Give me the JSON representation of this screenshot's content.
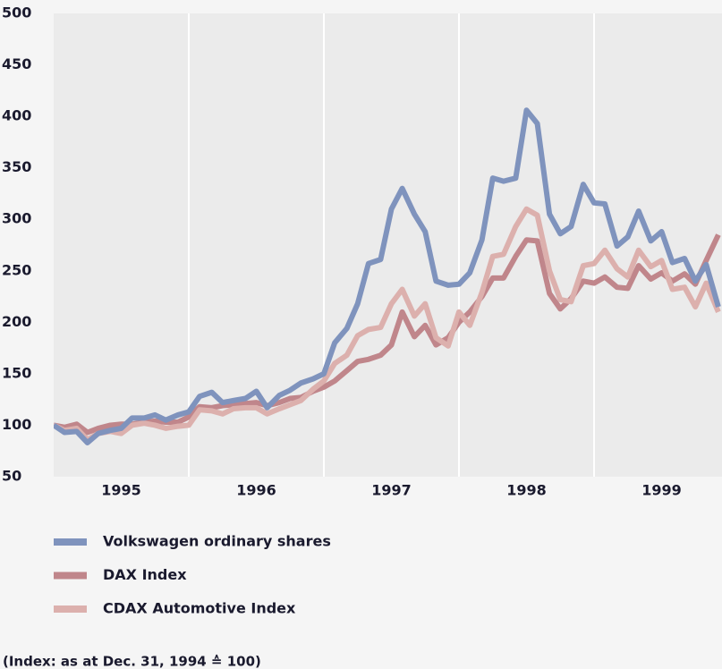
{
  "chart_data": {
    "type": "line",
    "note": "(Index: as at Dec. 31, 1994 ≙ 100)",
    "x": [
      1995,
      1995.08,
      1995.17,
      1995.25,
      1995.33,
      1995.42,
      1995.5,
      1995.58,
      1995.67,
      1995.75,
      1995.83,
      1995.92,
      1996,
      1996.08,
      1996.17,
      1996.25,
      1996.33,
      1996.42,
      1996.5,
      1996.58,
      1996.67,
      1996.75,
      1996.83,
      1996.92,
      1997,
      1997.08,
      1997.17,
      1997.25,
      1997.33,
      1997.42,
      1997.5,
      1997.58,
      1997.67,
      1997.75,
      1997.83,
      1997.92,
      1998,
      1998.08,
      1998.17,
      1998.25,
      1998.33,
      1998.42,
      1998.5,
      1998.58,
      1998.67,
      1998.75,
      1998.83,
      1998.92,
      1999,
      1999.08,
      1999.17,
      1999.25,
      1999.33,
      1999.42,
      1999.5,
      1999.58,
      1999.67,
      1999.75,
      1999.83,
      1999.92
    ],
    "series": [
      {
        "name": "Volkswagen ordinary shares",
        "color": "#7f93bd",
        "values": [
          100,
          93,
          94,
          83,
          92,
          95,
          97,
          107,
          107,
          110,
          105,
          110,
          113,
          128,
          132,
          122,
          124,
          126,
          133,
          117,
          129,
          134,
          141,
          145,
          150,
          180,
          194,
          218,
          257,
          261,
          310,
          330,
          305,
          288,
          240,
          236,
          237,
          248,
          280,
          340,
          337,
          340,
          406,
          393,
          305,
          286,
          293,
          334,
          316,
          315,
          274,
          283,
          308,
          279,
          288,
          258,
          262,
          240,
          256,
          215
        ]
      },
      {
        "name": "DAX Index",
        "color": "#c0868b",
        "values": [
          100,
          98,
          101,
          93,
          97,
          100,
          101,
          101,
          103,
          104,
          103,
          103,
          108,
          118,
          117,
          119,
          120,
          121,
          122,
          119,
          122,
          126,
          127,
          133,
          137,
          143,
          153,
          162,
          164,
          168,
          178,
          210,
          186,
          197,
          178,
          185,
          200,
          210,
          225,
          243,
          243,
          264,
          280,
          279,
          228,
          213,
          223,
          240,
          238,
          244,
          234,
          233,
          255,
          242,
          248,
          240,
          247,
          237,
          260,
          285
        ]
      },
      {
        "name": "CDAX Automotive Index",
        "color": "#dcb0ad",
        "values": [
          100,
          95,
          97,
          86,
          92,
          94,
          92,
          100,
          102,
          100,
          97,
          99,
          100,
          115,
          114,
          111,
          116,
          117,
          117,
          111,
          116,
          120,
          124,
          135,
          143,
          160,
          168,
          187,
          193,
          195,
          218,
          232,
          206,
          218,
          185,
          177,
          210,
          197,
          229,
          264,
          266,
          293,
          310,
          304,
          250,
          222,
          220,
          255,
          257,
          270,
          252,
          244,
          270,
          254,
          260,
          232,
          234,
          215,
          238,
          210
        ]
      }
    ],
    "xlim": [
      1995,
      1999.95
    ],
    "xticks": [
      {
        "value": 1995.5,
        "label": "1995"
      },
      {
        "value": 1996.5,
        "label": "1996"
      },
      {
        "value": 1997.5,
        "label": "1997"
      },
      {
        "value": 1998.5,
        "label": "1998"
      },
      {
        "value": 1999.5,
        "label": "1999"
      }
    ],
    "xgrid": [
      1996,
      1997,
      1998,
      1999
    ],
    "ylim": [
      50,
      500
    ],
    "yticks": [
      50,
      100,
      150,
      200,
      250,
      300,
      350,
      400,
      450,
      500
    ]
  }
}
